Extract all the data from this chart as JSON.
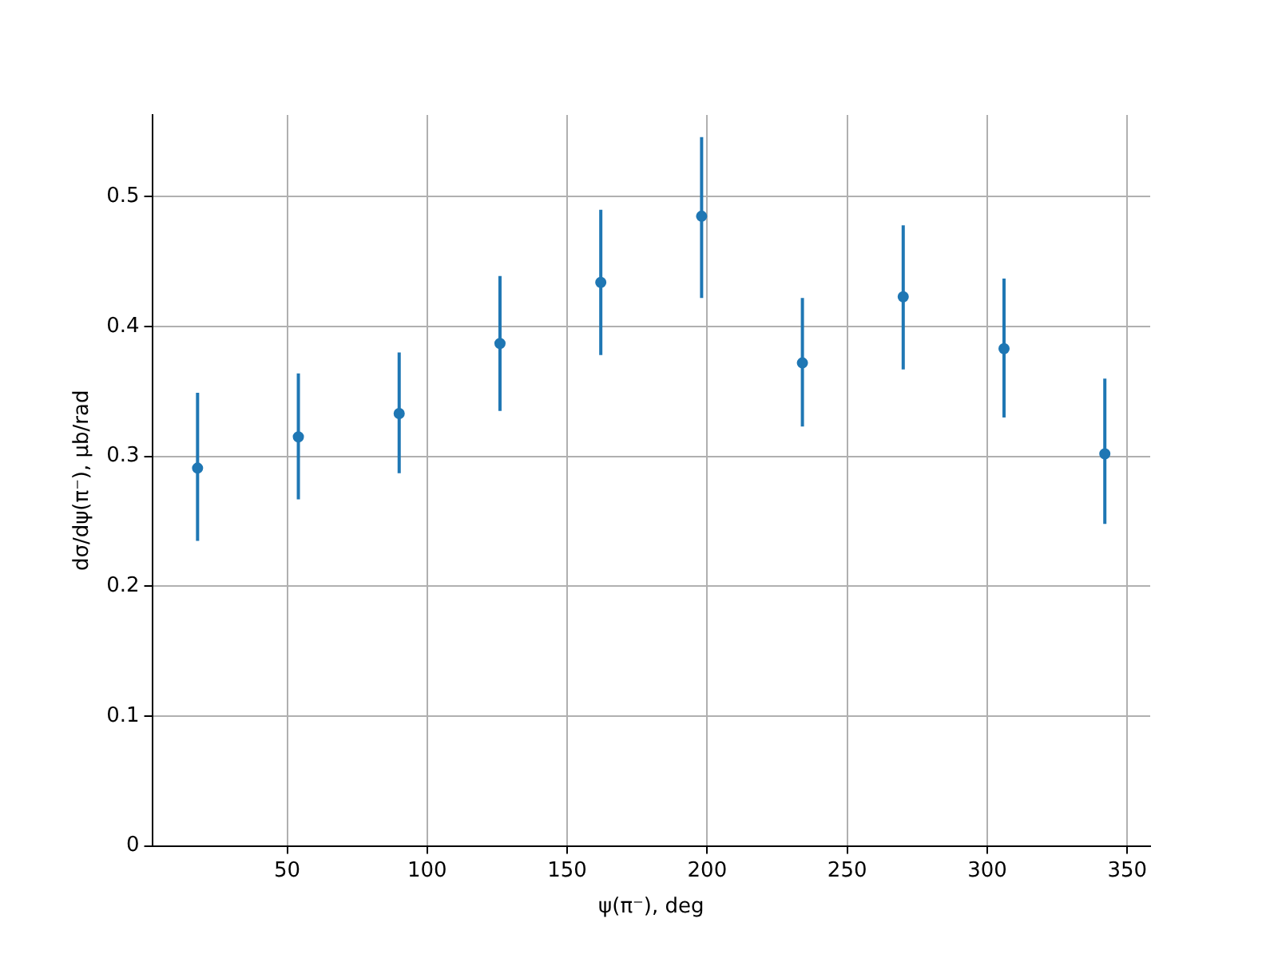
{
  "chart_data": {
    "type": "scatter",
    "xlabel": "ψ(π⁻), deg",
    "ylabel": "dσ/dψ(π⁻), μb/rad",
    "x": [
      18,
      54,
      90,
      126,
      162,
      198,
      234,
      270,
      306,
      342
    ],
    "series": [
      {
        "color": "#1f77b4",
        "values": [
          0.291,
          0.315,
          0.333,
          0.387,
          0.434,
          0.485,
          0.372,
          0.423,
          0.383,
          0.302
        ],
        "errors": [
          [
            0.235,
            0.349
          ],
          [
            0.267,
            0.364
          ],
          [
            0.287,
            0.38
          ],
          [
            0.335,
            0.439
          ],
          [
            0.378,
            0.49
          ],
          [
            0.422,
            0.546
          ],
          [
            0.323,
            0.422
          ],
          [
            0.367,
            0.478
          ],
          [
            0.33,
            0.437
          ],
          [
            0.248,
            0.36
          ]
        ]
      }
    ],
    "xlim": [
      1.8,
      358.2
    ],
    "ylim": [
      0,
      0.563
    ],
    "xticks": [
      50,
      100,
      150,
      200,
      250,
      300,
      350
    ],
    "yticks": [
      0,
      0.1,
      0.2,
      0.3,
      0.4,
      0.5
    ],
    "grid": true,
    "marker": "circle"
  }
}
